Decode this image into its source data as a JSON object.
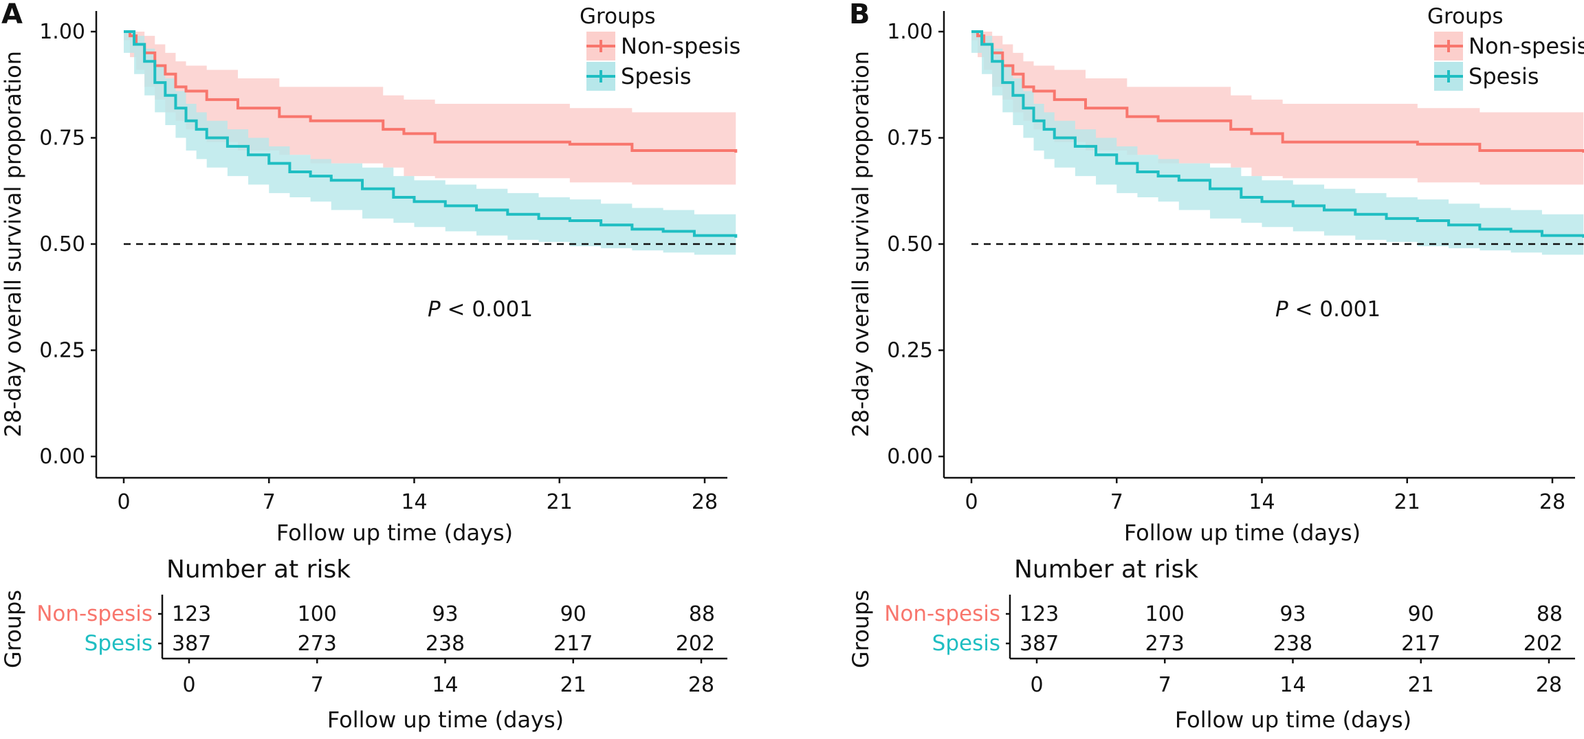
{
  "panels": [
    {
      "letter": "A"
    },
    {
      "letter": "B"
    }
  ],
  "colors": {
    "non_spesis": "#F8766D",
    "spesis": "#1FBEC2",
    "non_spesis_band": "#FCCFCC",
    "spesis_band": "#B7E7EA"
  },
  "text": {
    "ylabel": "28-day overall survival proporation",
    "xlabel": "Follow up time (days)",
    "legend_title": "Groups",
    "pvalue_italic": "P",
    "pvalue_rest": " < 0.001",
    "risk_title": "Number at risk",
    "risk_ylabel": "Groups",
    "risk_xlabel": "Follow up time (days)"
  },
  "chart_data": [
    {
      "type": "line",
      "panel": "A",
      "xlabel": "Follow up time (days)",
      "ylabel": "28-day overall survival proporation",
      "xlim": [
        0,
        29.5
      ],
      "ylim": [
        0,
        1
      ],
      "xticks": [
        0,
        7,
        14,
        21,
        28
      ],
      "xtick_labels": [
        "0",
        "7",
        "14",
        "21",
        "28"
      ],
      "yticks": [
        0,
        0.25,
        0.5,
        0.75,
        1.0
      ],
      "ytick_labels": [
        "0.00",
        "0.25",
        "0.50",
        "0.75",
        "1.00"
      ],
      "reference_line": 0.5,
      "legend": {
        "title": "Groups",
        "position": "top-right"
      },
      "series": [
        {
          "name": "Non-spesis",
          "color": "#F8766D",
          "x": [
            0,
            0.3,
            0.6,
            1.0,
            1.5,
            2.0,
            2.5,
            3.0,
            4.0,
            5.5,
            7.5,
            9.0,
            12.5,
            13.5,
            15.0,
            21.5,
            24.5,
            29.5
          ],
          "y": [
            1.0,
            0.99,
            0.97,
            0.95,
            0.92,
            0.9,
            0.87,
            0.86,
            0.84,
            0.82,
            0.8,
            0.79,
            0.77,
            0.76,
            0.74,
            0.735,
            0.72,
            0.715
          ],
          "lower": [
            1.0,
            0.98,
            0.94,
            0.91,
            0.87,
            0.84,
            0.81,
            0.79,
            0.77,
            0.74,
            0.72,
            0.71,
            0.69,
            0.68,
            0.66,
            0.655,
            0.645,
            0.64
          ],
          "upper": [
            1.0,
            1.0,
            1.0,
            0.99,
            0.97,
            0.95,
            0.93,
            0.92,
            0.91,
            0.89,
            0.87,
            0.87,
            0.85,
            0.84,
            0.83,
            0.82,
            0.81,
            0.8
          ]
        },
        {
          "name": "Spesis",
          "color": "#1FBEC2",
          "x": [
            0,
            0.5,
            1.0,
            1.5,
            2.0,
            2.5,
            3.0,
            3.5,
            4.0,
            5.0,
            6.0,
            7.0,
            8.0,
            9.0,
            10.0,
            11.5,
            13.0,
            14.0,
            15.5,
            17.0,
            18.5,
            20.0,
            21.5,
            23.0,
            24.5,
            26.0,
            27.5,
            29.5
          ],
          "y": [
            1.0,
            0.97,
            0.93,
            0.88,
            0.85,
            0.82,
            0.79,
            0.77,
            0.75,
            0.73,
            0.71,
            0.69,
            0.67,
            0.66,
            0.65,
            0.63,
            0.61,
            0.6,
            0.59,
            0.58,
            0.57,
            0.56,
            0.555,
            0.545,
            0.535,
            0.53,
            0.52,
            0.515
          ],
          "lower": [
            1.0,
            0.95,
            0.9,
            0.85,
            0.81,
            0.78,
            0.75,
            0.72,
            0.7,
            0.68,
            0.66,
            0.64,
            0.62,
            0.61,
            0.6,
            0.58,
            0.56,
            0.55,
            0.54,
            0.53,
            0.52,
            0.51,
            0.505,
            0.495,
            0.49,
            0.485,
            0.48,
            0.475
          ],
          "upper": [
            1.0,
            0.99,
            0.96,
            0.92,
            0.89,
            0.86,
            0.83,
            0.81,
            0.79,
            0.77,
            0.75,
            0.73,
            0.71,
            0.7,
            0.69,
            0.68,
            0.66,
            0.65,
            0.64,
            0.63,
            0.62,
            0.61,
            0.605,
            0.595,
            0.585,
            0.58,
            0.57,
            0.56
          ]
        }
      ],
      "annotation": "P < 0.001"
    },
    {
      "type": "table",
      "panel": "A",
      "title": "Number at risk",
      "columns": [
        "0",
        "7",
        "14",
        "21",
        "28"
      ],
      "xlabel": "Follow up time (days)",
      "ylabel": "Groups",
      "rows": [
        {
          "group": "Non-spesis",
          "values": [
            123,
            100,
            93,
            90,
            88
          ]
        },
        {
          "group": "Spesis",
          "values": [
            387,
            273,
            238,
            217,
            202
          ]
        }
      ]
    },
    {
      "type": "line",
      "panel": "B",
      "xlabel": "Follow up time (days)",
      "ylabel": "28-day overall survival proporation",
      "xlim": [
        0,
        29.5
      ],
      "ylim": [
        0,
        1
      ],
      "xticks": [
        0,
        7,
        14,
        21,
        28
      ],
      "xtick_labels": [
        "0",
        "7",
        "14",
        "21",
        "28"
      ],
      "yticks": [
        0,
        0.25,
        0.5,
        0.75,
        1.0
      ],
      "ytick_labels": [
        "0.00",
        "0.25",
        "0.50",
        "0.75",
        "1.00"
      ],
      "reference_line": 0.5,
      "legend": {
        "title": "Groups",
        "position": "top-right"
      },
      "series": [
        {
          "name": "Non-spesis",
          "color": "#F8766D",
          "x": [
            0,
            0.3,
            0.6,
            1.0,
            1.5,
            2.0,
            2.5,
            3.0,
            4.0,
            5.5,
            7.5,
            9.0,
            12.5,
            13.5,
            15.0,
            21.5,
            24.5,
            29.5
          ],
          "y": [
            1.0,
            0.99,
            0.97,
            0.95,
            0.92,
            0.9,
            0.87,
            0.86,
            0.84,
            0.82,
            0.8,
            0.79,
            0.77,
            0.76,
            0.74,
            0.735,
            0.72,
            0.715
          ],
          "lower": [
            1.0,
            0.98,
            0.94,
            0.91,
            0.87,
            0.84,
            0.81,
            0.79,
            0.77,
            0.74,
            0.72,
            0.71,
            0.69,
            0.68,
            0.66,
            0.655,
            0.645,
            0.64
          ],
          "upper": [
            1.0,
            1.0,
            1.0,
            0.99,
            0.97,
            0.95,
            0.93,
            0.92,
            0.91,
            0.89,
            0.87,
            0.87,
            0.85,
            0.84,
            0.83,
            0.82,
            0.81,
            0.8
          ]
        },
        {
          "name": "Spesis",
          "color": "#1FBEC2",
          "x": [
            0,
            0.5,
            1.0,
            1.5,
            2.0,
            2.5,
            3.0,
            3.5,
            4.0,
            5.0,
            6.0,
            7.0,
            8.0,
            9.0,
            10.0,
            11.5,
            13.0,
            14.0,
            15.5,
            17.0,
            18.5,
            20.0,
            21.5,
            23.0,
            24.5,
            26.0,
            27.5,
            29.5
          ],
          "y": [
            1.0,
            0.97,
            0.93,
            0.88,
            0.85,
            0.82,
            0.79,
            0.77,
            0.75,
            0.73,
            0.71,
            0.69,
            0.67,
            0.66,
            0.65,
            0.63,
            0.61,
            0.6,
            0.59,
            0.58,
            0.57,
            0.56,
            0.555,
            0.545,
            0.535,
            0.53,
            0.52,
            0.515
          ],
          "lower": [
            1.0,
            0.95,
            0.9,
            0.85,
            0.81,
            0.78,
            0.75,
            0.72,
            0.7,
            0.68,
            0.66,
            0.64,
            0.62,
            0.61,
            0.6,
            0.58,
            0.56,
            0.55,
            0.54,
            0.53,
            0.52,
            0.51,
            0.505,
            0.495,
            0.49,
            0.485,
            0.48,
            0.475
          ],
          "upper": [
            1.0,
            0.99,
            0.96,
            0.92,
            0.89,
            0.86,
            0.83,
            0.81,
            0.79,
            0.77,
            0.75,
            0.73,
            0.71,
            0.7,
            0.69,
            0.68,
            0.66,
            0.65,
            0.64,
            0.63,
            0.62,
            0.61,
            0.605,
            0.595,
            0.585,
            0.58,
            0.57,
            0.56
          ]
        }
      ],
      "annotation": "P < 0.001"
    },
    {
      "type": "table",
      "panel": "B",
      "title": "Number at risk",
      "columns": [
        "0",
        "7",
        "14",
        "21",
        "28"
      ],
      "xlabel": "Follow up time (days)",
      "ylabel": "Groups",
      "rows": [
        {
          "group": "Non-spesis",
          "values": [
            123,
            100,
            93,
            90,
            88
          ]
        },
        {
          "group": "Spesis",
          "values": [
            387,
            273,
            238,
            217,
            202
          ]
        }
      ]
    }
  ]
}
